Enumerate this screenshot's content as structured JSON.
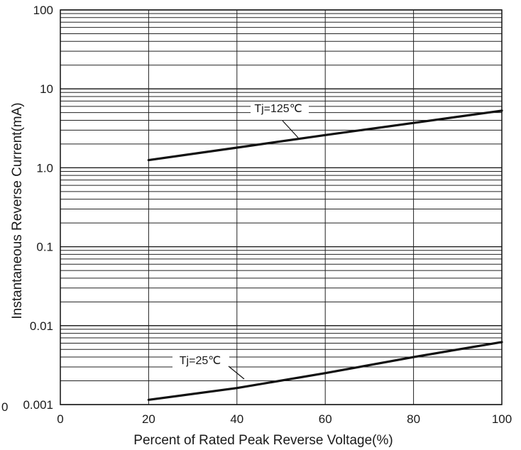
{
  "chart_data": {
    "type": "line",
    "title": "",
    "xlabel": "Percent of Rated Peak Reverse Voltage(%)",
    "ylabel": "Instantaneous Reverse Current(mA)",
    "x_scale": "linear",
    "y_scale": "log",
    "xlim": [
      0,
      100
    ],
    "ylim": [
      0.001,
      100
    ],
    "x_ticks": [
      0,
      20,
      40,
      60,
      80,
      100
    ],
    "x_tick_labels": [
      "0",
      "20",
      "40",
      "60",
      "80",
      "100"
    ],
    "y_ticks": [
      0.001,
      0.01,
      0.1,
      1,
      10,
      100
    ],
    "y_tick_labels": [
      "0.001",
      "0.01",
      "0.1",
      "1.0",
      "10",
      "100"
    ],
    "stray_label": "0",
    "grid": true,
    "series": [
      {
        "name": "Tj=125℃",
        "x": [
          20,
          40,
          60,
          80,
          100
        ],
        "y": [
          1.25,
          1.8,
          2.6,
          3.7,
          5.3
        ]
      },
      {
        "name": "Tj=25℃",
        "x": [
          20,
          40,
          60,
          80,
          100
        ],
        "y": [
          0.00115,
          0.00162,
          0.0025,
          0.004,
          0.0062
        ]
      }
    ]
  }
}
